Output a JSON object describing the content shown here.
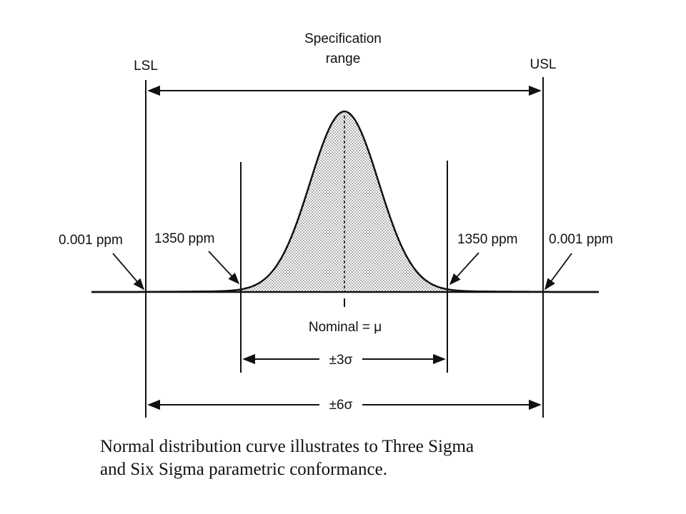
{
  "diagram": {
    "title_line1": "Specification",
    "title_line2": "range",
    "lsl": "LSL",
    "usl": "USL",
    "left_outer_ppm": "0.001 ppm",
    "left_inner_ppm": "1350 ppm",
    "right_inner_ppm": "1350 ppm",
    "right_outer_ppm": "0.001 ppm",
    "nominal": "Nominal = μ",
    "three_sigma": "±3σ",
    "six_sigma": "±6σ"
  },
  "caption": {
    "line1": "Normal distribution curve illustrates to Three Sigma",
    "line2": "and Six Sigma parametric conformance."
  }
}
